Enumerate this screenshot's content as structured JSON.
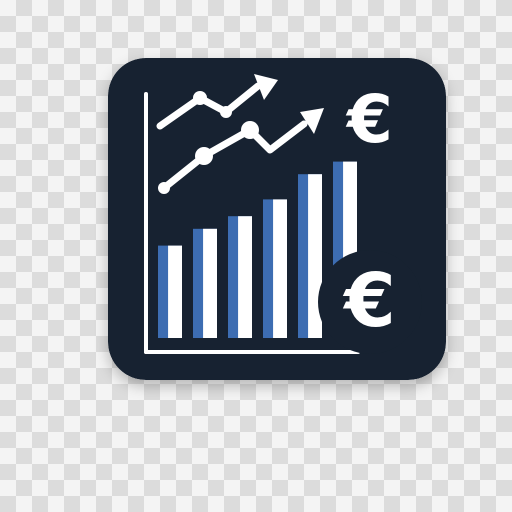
{
  "icon": {
    "name": "finance-growth-euro-app-icon",
    "background_color": "#172231",
    "foreground_color": "#ffffff",
    "accent_color": "#3d6db2",
    "symbols": [
      "€",
      "€"
    ],
    "glyphs": [
      "upward-trend-line-arrow",
      "upward-trend-line-arrow",
      "bar-chart",
      "euro-symbol",
      "euro-coin"
    ]
  },
  "chart_data": {
    "type": "bar",
    "categories": [
      "",
      "",
      "",
      "",
      "",
      ""
    ],
    "values": [
      2.2,
      2.6,
      2.9,
      3.3,
      3.9,
      4.2
    ],
    "ylim": [
      0,
      5
    ],
    "grid": false
  }
}
